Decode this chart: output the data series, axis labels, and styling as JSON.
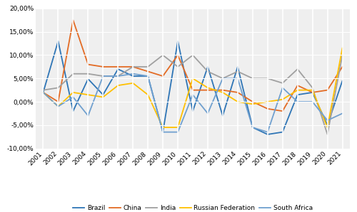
{
  "years": [
    2001,
    2002,
    2003,
    2004,
    2005,
    2006,
    2007,
    2008,
    2009,
    2010,
    2011,
    2012,
    2013,
    2014,
    2015,
    2016,
    2017,
    2018,
    2019,
    2020,
    2021
  ],
  "brazil": [
    0.02,
    0.13,
    -0.02,
    0.049,
    0.015,
    0.07,
    0.055,
    0.055,
    -0.065,
    0.13,
    -0.02,
    0.075,
    -0.03,
    0.075,
    -0.055,
    -0.07,
    -0.065,
    0.015,
    0.02,
    -0.05,
    0.045
  ],
  "china": [
    0.02,
    0.0,
    0.175,
    0.08,
    0.075,
    0.075,
    0.075,
    0.065,
    0.055,
    0.1,
    0.025,
    0.025,
    0.025,
    0.02,
    0.0,
    -0.015,
    -0.02,
    0.035,
    0.02,
    0.025,
    0.075
  ],
  "india": [
    0.025,
    0.03,
    0.06,
    0.06,
    0.055,
    0.055,
    0.075,
    0.075,
    0.1,
    0.075,
    0.1,
    0.065,
    0.05,
    0.065,
    0.05,
    0.05,
    0.04,
    0.07,
    0.03,
    -0.07,
    0.1
  ],
  "russia": [
    0.02,
    -0.01,
    0.02,
    0.015,
    0.01,
    0.035,
    0.04,
    0.015,
    -0.055,
    -0.055,
    0.05,
    0.03,
    0.02,
    0.0,
    -0.005,
    0.0,
    0.005,
    0.025,
    0.025,
    -0.055,
    0.115
  ],
  "south_africa": [
    0.02,
    -0.01,
    0.01,
    -0.03,
    0.055,
    0.055,
    0.06,
    0.055,
    -0.065,
    -0.065,
    0.015,
    -0.025,
    0.05,
    0.05,
    -0.055,
    -0.065,
    0.03,
    0.0,
    0.0,
    -0.04,
    -0.025
  ],
  "colors": {
    "brazil": "#2E75B6",
    "china": "#E36B24",
    "india": "#A0A0A0",
    "russia": "#FFC000",
    "south_africa": "#70A0CF"
  },
  "ylim": [
    -0.1,
    0.2
  ],
  "yticks": [
    -0.1,
    -0.05,
    0.0,
    0.05,
    0.1,
    0.15,
    0.2
  ],
  "bg_color": "#EFEFEF",
  "grid_color": "#FFFFFF",
  "fig_width": 5.0,
  "fig_height": 2.98,
  "dpi": 100
}
